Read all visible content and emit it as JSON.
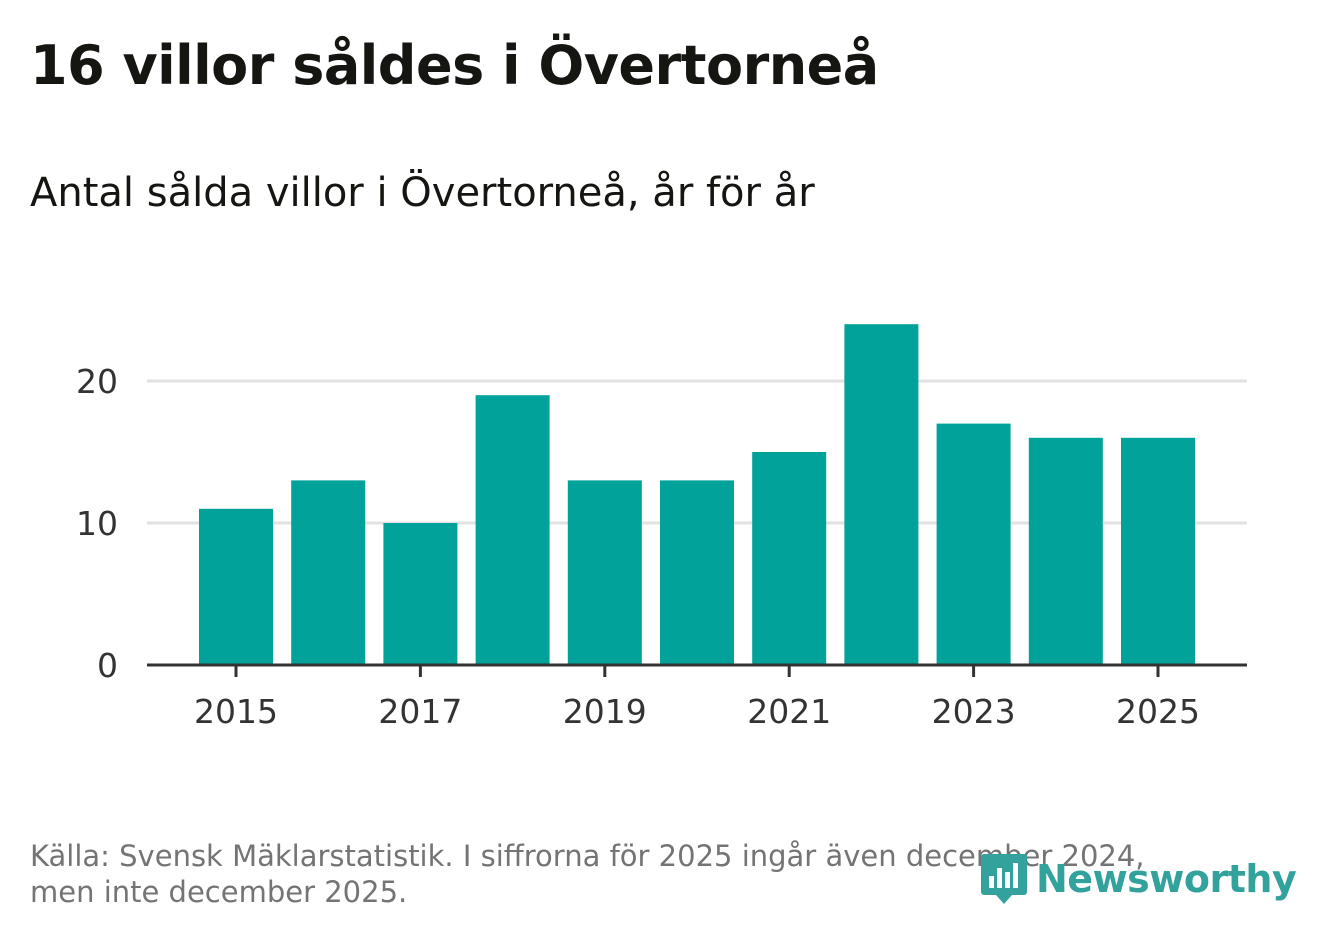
{
  "title": "16 villor såldes i Övertorneå",
  "subtitle": "Antal sålda villor i Övertorneå, år för år",
  "footer": {
    "line1": "Källa: Svensk Mäklarstatistik. I siffrorna för 2025 ingår även december 2024,",
    "line2": "men inte december 2025."
  },
  "logo": {
    "text": "Newsworthy",
    "icon": "newsworthy-logo-icon",
    "color": "#33a19c"
  },
  "colors": {
    "bar": "#00a299",
    "grid": "#e2e2e2",
    "axis": "#333333",
    "text": "#151511"
  },
  "chart_data": {
    "type": "bar",
    "title": "16 villor såldes i Övertorneå",
    "subtitle": "Antal sålda villor i Övertorneå, år för år",
    "categories": [
      "2015",
      "2016",
      "2017",
      "2018",
      "2019",
      "2020",
      "2021",
      "2022",
      "2023",
      "2024",
      "2025"
    ],
    "values": [
      11,
      13,
      10,
      19,
      13,
      13,
      15,
      24,
      17,
      16,
      16
    ],
    "x_tick_labels": [
      "2015",
      "2017",
      "2019",
      "2021",
      "2023",
      "2025"
    ],
    "y_ticks": [
      0,
      10,
      20
    ],
    "ylim": [
      0,
      24
    ],
    "xlabel": "",
    "ylabel": "",
    "grid": true
  }
}
